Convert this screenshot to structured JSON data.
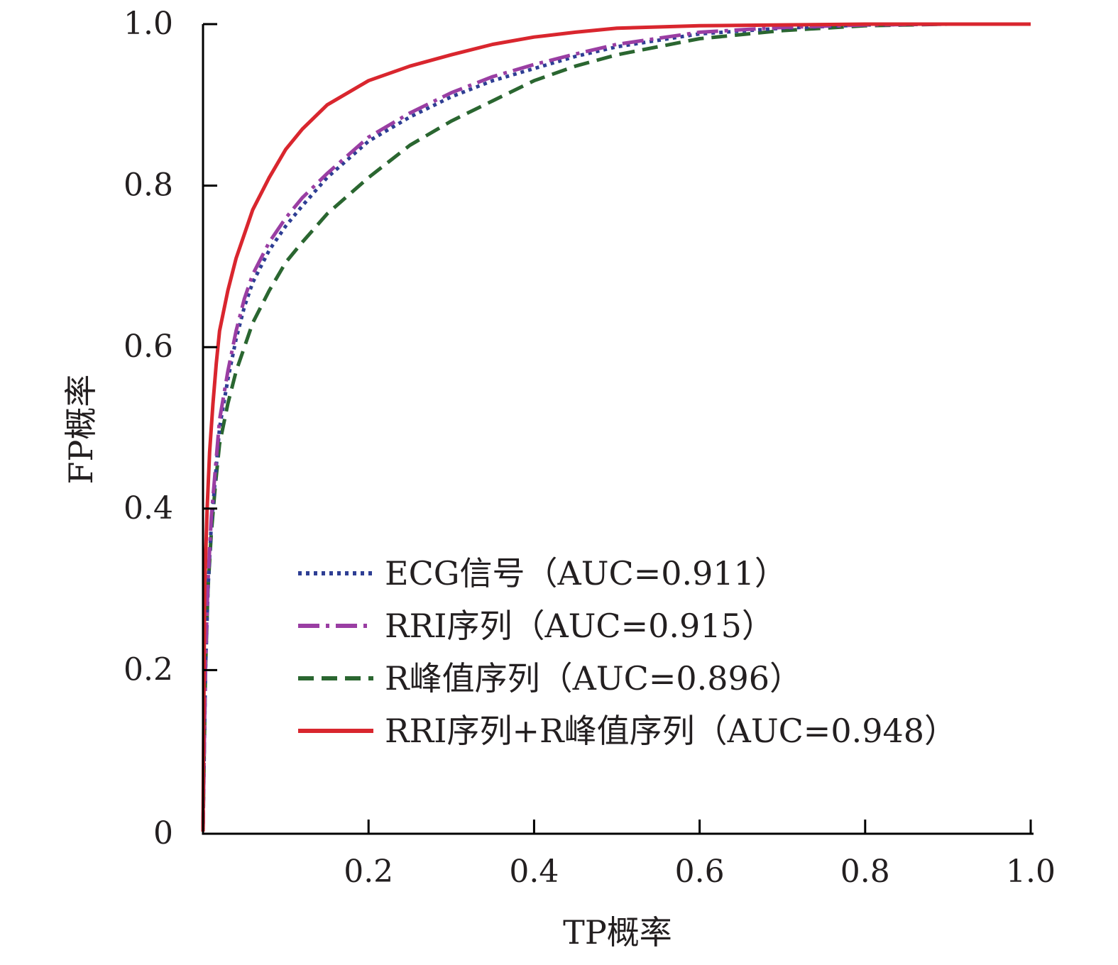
{
  "chart_data": {
    "type": "line",
    "xlabel": "TP概率",
    "ylabel": "FP概率",
    "xlim": [
      0,
      1.0
    ],
    "ylim": [
      0,
      1.0
    ],
    "x_ticks": [
      {
        "value": 0.2,
        "label": "0.2"
      },
      {
        "value": 0.4,
        "label": "0.4"
      },
      {
        "value": 0.6,
        "label": "0.6"
      },
      {
        "value": 0.8,
        "label": "0.8"
      },
      {
        "value": 1.0,
        "label": "1.0"
      }
    ],
    "y_ticks": [
      {
        "value": 0,
        "label": "0"
      },
      {
        "value": 0.2,
        "label": "0.2"
      },
      {
        "value": 0.4,
        "label": "0.4"
      },
      {
        "value": 0.6,
        "label": "0.6"
      },
      {
        "value": 0.8,
        "label": "0.8"
      },
      {
        "value": 1.0,
        "label": "1.0"
      }
    ],
    "grid": false,
    "legend_position": "center-right",
    "series": [
      {
        "name": "ECG信号（AUC=0.911）",
        "color": "#2e3e94",
        "style": "dotted",
        "x": [
          0,
          0.003,
          0.006,
          0.01,
          0.015,
          0.02,
          0.03,
          0.04,
          0.05,
          0.06,
          0.08,
          0.1,
          0.12,
          0.15,
          0.2,
          0.25,
          0.3,
          0.35,
          0.4,
          0.45,
          0.5,
          0.6,
          0.7,
          0.8,
          0.9,
          1.0
        ],
        "y": [
          0,
          0.2,
          0.3,
          0.38,
          0.44,
          0.5,
          0.56,
          0.61,
          0.65,
          0.68,
          0.72,
          0.75,
          0.775,
          0.81,
          0.855,
          0.885,
          0.91,
          0.93,
          0.945,
          0.96,
          0.972,
          0.988,
          0.995,
          0.999,
          1.0,
          1.0
        ]
      },
      {
        "name": "RRI序列（AUC=0.915）",
        "color": "#9a3ea3",
        "style": "dashdot",
        "x": [
          0,
          0.003,
          0.006,
          0.01,
          0.015,
          0.02,
          0.03,
          0.04,
          0.05,
          0.06,
          0.08,
          0.1,
          0.12,
          0.15,
          0.2,
          0.25,
          0.3,
          0.35,
          0.4,
          0.45,
          0.5,
          0.6,
          0.7,
          0.8,
          0.9,
          1.0
        ],
        "y": [
          0,
          0.21,
          0.31,
          0.39,
          0.45,
          0.51,
          0.57,
          0.62,
          0.66,
          0.69,
          0.73,
          0.76,
          0.785,
          0.815,
          0.86,
          0.89,
          0.915,
          0.935,
          0.95,
          0.963,
          0.975,
          0.99,
          0.996,
          0.999,
          1.0,
          1.0
        ]
      },
      {
        "name": "R峰值序列（AUC=0.896）",
        "color": "#2a6630",
        "style": "dashed",
        "x": [
          0,
          0.003,
          0.006,
          0.01,
          0.015,
          0.02,
          0.03,
          0.04,
          0.05,
          0.06,
          0.08,
          0.1,
          0.12,
          0.15,
          0.2,
          0.25,
          0.3,
          0.35,
          0.4,
          0.45,
          0.5,
          0.6,
          0.7,
          0.8,
          0.9,
          1.0
        ],
        "y": [
          0,
          0.2,
          0.3,
          0.37,
          0.43,
          0.48,
          0.53,
          0.57,
          0.6,
          0.63,
          0.67,
          0.705,
          0.73,
          0.765,
          0.81,
          0.85,
          0.88,
          0.905,
          0.93,
          0.948,
          0.962,
          0.982,
          0.992,
          0.998,
          1.0,
          1.0
        ]
      },
      {
        "name": "RRI序列+R峰值序列（AUC=0.948）",
        "color": "#d9262e",
        "style": "solid",
        "x": [
          0,
          0.002,
          0.005,
          0.008,
          0.012,
          0.016,
          0.02,
          0.03,
          0.04,
          0.05,
          0.06,
          0.08,
          0.1,
          0.12,
          0.15,
          0.2,
          0.25,
          0.3,
          0.35,
          0.4,
          0.45,
          0.5,
          0.6,
          0.7,
          0.8,
          0.9,
          1.0
        ],
        "y": [
          0,
          0.3,
          0.4,
          0.47,
          0.53,
          0.58,
          0.62,
          0.67,
          0.71,
          0.74,
          0.77,
          0.81,
          0.845,
          0.87,
          0.9,
          0.93,
          0.948,
          0.962,
          0.975,
          0.984,
          0.99,
          0.995,
          0.998,
          0.999,
          1.0,
          1.0,
          1.0
        ]
      }
    ]
  }
}
